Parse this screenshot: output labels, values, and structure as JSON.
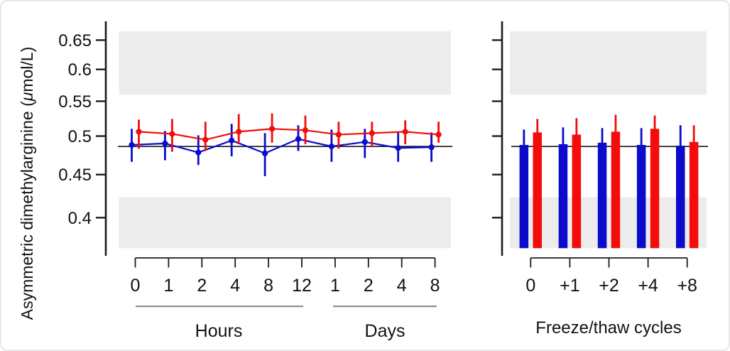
{
  "figure": {
    "ylabel_prefix": "Asymmetric dimethylarginine (",
    "ylabel_mu": "μ",
    "ylabel_suffix": "mol/L)",
    "colors": {
      "series_blue": "#0B0BCB",
      "series_red": "#F40B0B",
      "band": "#ECECEC",
      "axis": "#1C1C1C",
      "reference_line": "#000000",
      "group_underline": "#8F8F8F",
      "text": "#111111"
    }
  },
  "chart_data": [
    {
      "type": "line",
      "panel": "storage-time",
      "yscale": "log",
      "ylim": [
        0.368,
        0.684
      ],
      "grid": false,
      "legend": "none",
      "error_bars": true,
      "yticks": [
        0.65,
        0.6,
        0.55,
        0.5,
        0.45,
        0.4
      ],
      "ytick_labels": [
        "0.65",
        "0.6",
        "0.55",
        "0.5",
        "0.45",
        "0.4"
      ],
      "reference_line": 0.486,
      "shaded_bands": [
        [
          0.56,
          0.666
        ],
        [
          0.368,
          0.423
        ]
      ],
      "groups": [
        {
          "label": "Hours",
          "categories": [
            "0",
            "1",
            "2",
            "4",
            "8",
            "12"
          ]
        },
        {
          "label": "Days",
          "categories": [
            "1",
            "2",
            "4",
            "8"
          ]
        }
      ],
      "series": [
        {
          "name": "blue",
          "values": [
            0.488,
            0.49,
            0.478,
            0.494,
            0.477,
            0.496,
            0.486,
            0.492,
            0.484,
            0.485
          ],
          "upper": [
            0.51,
            0.507,
            0.501,
            0.517,
            0.504,
            0.515,
            0.509,
            0.51,
            0.506,
            0.505
          ],
          "lower": [
            0.466,
            0.468,
            0.462,
            0.473,
            0.448,
            0.48,
            0.466,
            0.471,
            0.466,
            0.466
          ]
        },
        {
          "name": "red",
          "values": [
            0.506,
            0.503,
            0.495,
            0.506,
            0.51,
            0.508,
            0.502,
            0.504,
            0.506,
            0.502
          ],
          "upper": [
            0.523,
            0.524,
            0.52,
            0.531,
            0.532,
            0.529,
            0.52,
            0.52,
            0.522,
            0.52
          ],
          "lower": [
            0.483,
            0.479,
            0.48,
            0.489,
            0.491,
            0.489,
            0.483,
            0.485,
            0.489,
            0.491
          ]
        }
      ]
    },
    {
      "type": "bar",
      "panel": "freeze-thaw",
      "xlabel": "Freeze/thaw cycles",
      "yscale": "log",
      "ylim": [
        0.368,
        0.684
      ],
      "grid": false,
      "legend": "none",
      "error_bars": true,
      "bar_base": 0.368,
      "reference_line": 0.486,
      "shaded_bands": [
        [
          0.56,
          0.666
        ],
        [
          0.368,
          0.423
        ]
      ],
      "categories": [
        "0",
        "+1",
        "+2",
        "+4",
        "+8"
      ],
      "series": [
        {
          "name": "blue",
          "values": [
            0.488,
            0.489,
            0.491,
            0.488,
            0.487
          ],
          "upper": [
            0.509,
            0.512,
            0.511,
            0.511,
            0.515
          ]
        },
        {
          "name": "red",
          "values": [
            0.505,
            0.502,
            0.506,
            0.51,
            0.492
          ],
          "upper": [
            0.524,
            0.525,
            0.53,
            0.529,
            0.515
          ]
        }
      ]
    }
  ]
}
